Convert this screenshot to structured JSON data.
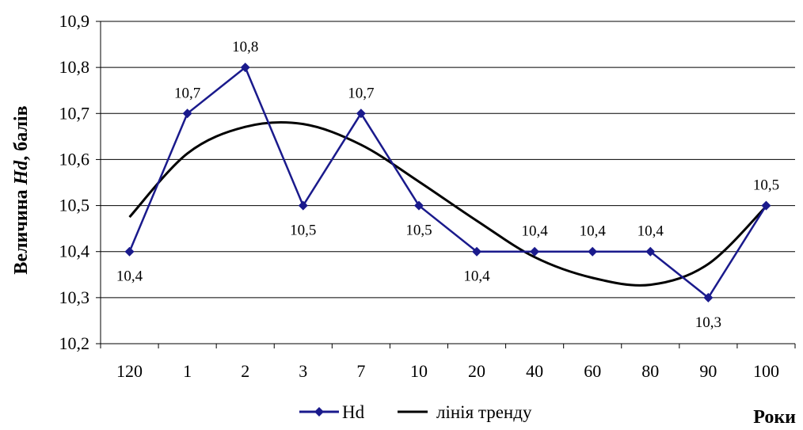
{
  "chart_data": {
    "type": "line",
    "categories": [
      "120",
      "1",
      "2",
      "3",
      "7",
      "10",
      "20",
      "40",
      "60",
      "80",
      "90",
      "100"
    ],
    "series": [
      {
        "name": "Hd",
        "values": [
          10.4,
          10.7,
          10.8,
          10.5,
          10.7,
          10.5,
          10.4,
          10.4,
          10.4,
          10.4,
          10.3,
          10.5
        ],
        "data_labels": [
          "10,4",
          "10,7",
          "10,8",
          "10,5",
          "10,7",
          "10,5",
          "10,4",
          "10,4",
          "10,4",
          "10,4",
          "10,3",
          "10,5"
        ],
        "label_positions": [
          "below",
          "above",
          "above",
          "below",
          "above",
          "below",
          "below",
          "above",
          "above",
          "above",
          "below",
          "above"
        ],
        "color": "#1a1a8c",
        "marker": "diamond"
      },
      {
        "name": "лінія тренду",
        "trend_values": [
          10.475,
          10.613,
          10.671,
          10.677,
          10.632,
          10.552,
          10.467,
          10.388,
          10.343,
          10.328,
          10.373,
          10.498
        ],
        "color": "#000000",
        "style": "smooth"
      }
    ],
    "y_ticks": [
      "10,2",
      "10,3",
      "10,4",
      "10,5",
      "10,6",
      "10,7",
      "10,8",
      "10,9"
    ],
    "ylim": [
      10.2,
      10.9
    ],
    "ylabel_plain": "Величина ",
    "ylabel_italic": "Hd",
    "ylabel_suffix": ", балів",
    "xlabel": "Роки",
    "grid": "horizontal",
    "legend_position": "bottom"
  },
  "legend": {
    "series_1_label": "Hd",
    "series_2_label": "лінія тренду"
  }
}
